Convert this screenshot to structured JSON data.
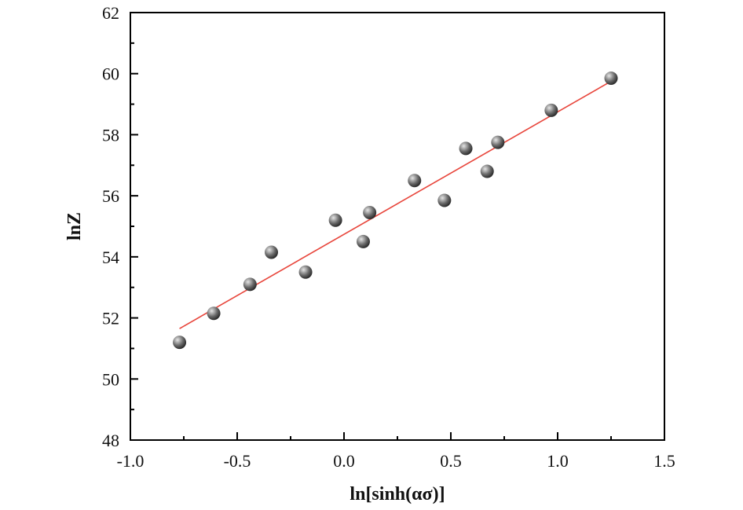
{
  "chart_data": {
    "type": "scatter",
    "title": "",
    "xlabel": "ln[sinh(ασ)]",
    "ylabel": "lnZ",
    "xlim": [
      -1.0,
      1.5
    ],
    "ylim": [
      48,
      62
    ],
    "xticks": [
      -1.0,
      -0.5,
      0.0,
      0.5,
      1.0,
      1.5
    ],
    "xtick_labels": [
      "-1.0",
      "-0.5",
      "0.0",
      "0.5",
      "1.0",
      "1.5"
    ],
    "yticks": [
      48,
      50,
      52,
      54,
      56,
      58,
      60,
      62
    ],
    "ytick_labels": [
      "48",
      "50",
      "52",
      "54",
      "56",
      "58",
      "60",
      "62"
    ],
    "grid": false,
    "legend": "none",
    "series": [
      {
        "x": [
          -0.77,
          -0.61,
          -0.44,
          -0.34,
          -0.18,
          -0.04,
          0.09,
          0.12,
          0.33,
          0.47,
          0.57,
          0.67,
          0.72,
          0.97,
          1.25
        ],
        "y": [
          51.2,
          52.15,
          53.1,
          54.15,
          53.5,
          55.2,
          54.5,
          55.45,
          56.5,
          55.85,
          57.55,
          56.8,
          57.75,
          58.8,
          59.85
        ]
      }
    ],
    "fit_line": {
      "x": [
        -0.77,
        1.25
      ],
      "y": [
        51.65,
        59.75
      ]
    },
    "colors": {
      "marker": "#6a6a6a",
      "marker_highlight": "#e6e6e6",
      "marker_dark": "#1e1e1e",
      "fit_line": "#e8463c",
      "axis": "#000000"
    }
  }
}
